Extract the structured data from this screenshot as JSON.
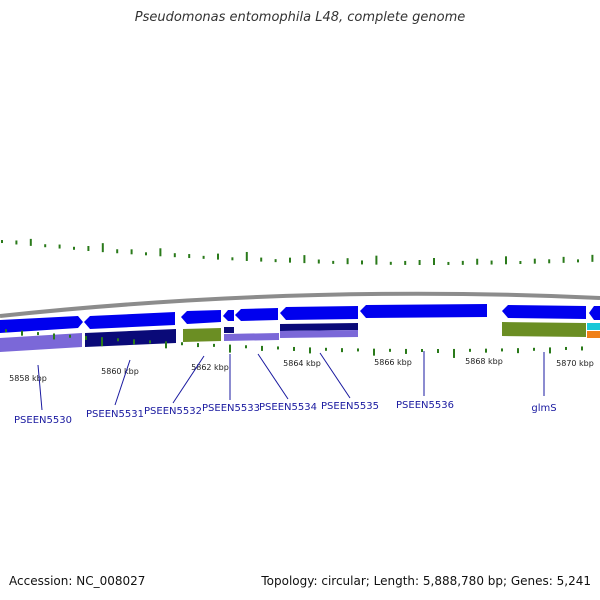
{
  "title": "Pseudomonas entomophila L48, complete genome",
  "footer": {
    "accession": "Accession: NC_008027",
    "topology": "Topology: circular; Length: 5,888,780 bp; Genes: 5,241"
  },
  "colors": {
    "backbone": "#8c8c8c",
    "forward_strand": "#0000ee",
    "reverse_cds": "#7b68d8",
    "reverse_dark": "#0a0a78",
    "rna_like": "#6b8e23",
    "gc_skew": "#2a7a1a",
    "label_text": "#1a1aa0",
    "cyan_feature": "#18c8d8",
    "orange_feature": "#f08018"
  },
  "kbp_labels": [
    "5858 kbp",
    "5860 kbp",
    "5862 kbp",
    "5864 kbp",
    "5866 kbp",
    "5868 kbp",
    "5870 kbp"
  ],
  "gene_labels": [
    "PSEEN5530",
    "PSEEN5531",
    "PSEEN5532",
    "PSEEN5533",
    "PSEEN5534",
    "PSEEN5535",
    "PSEEN5536",
    "glmS"
  ]
}
